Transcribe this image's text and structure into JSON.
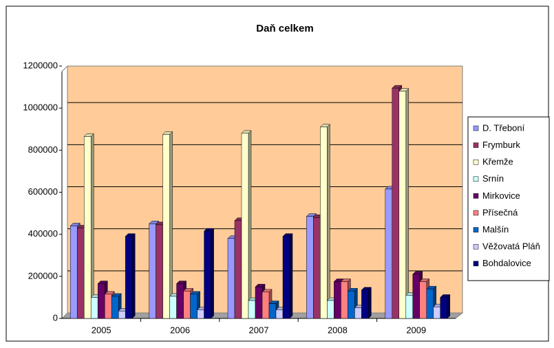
{
  "chart_data": {
    "type": "bar",
    "title": "Daň celkem",
    "categories": [
      "2005",
      "2006",
      "2007",
      "2008",
      "2009"
    ],
    "ylim": [
      0,
      1200000
    ],
    "yticks": [
      0,
      200000,
      400000,
      600000,
      800000,
      1000000,
      1200000
    ],
    "grid": true,
    "legend": "right",
    "series": [
      {
        "name": "D. Třeboní",
        "color": "#9999FF",
        "values": [
          440000,
          450000,
          380000,
          485000,
          615000
        ]
      },
      {
        "name": "Frymburk",
        "color": "#993366",
        "values": [
          430000,
          445000,
          465000,
          480000,
          1095000
        ]
      },
      {
        "name": "Křemže",
        "color": "#FFFFCC",
        "values": [
          865000,
          875000,
          880000,
          910000,
          1080000
        ]
      },
      {
        "name": "Srnín",
        "color": "#CCFFFF",
        "values": [
          100000,
          105000,
          85000,
          85000,
          110000
        ]
      },
      {
        "name": "Mirkovice",
        "color": "#660066",
        "values": [
          165000,
          165000,
          150000,
          175000,
          210000
        ]
      },
      {
        "name": "Přísečná",
        "color": "#FF8080",
        "values": [
          115000,
          130000,
          125000,
          175000,
          175000
        ]
      },
      {
        "name": "Malšín",
        "color": "#0066CC",
        "values": [
          105000,
          115000,
          70000,
          130000,
          140000
        ]
      },
      {
        "name": "Věžovatá Pláň",
        "color": "#CCCCFF",
        "values": [
          35000,
          40000,
          40000,
          50000,
          55000
        ]
      },
      {
        "name": "Bohdalovice",
        "color": "#000080",
        "values": [
          390000,
          415000,
          390000,
          135000,
          100000
        ]
      }
    ]
  }
}
